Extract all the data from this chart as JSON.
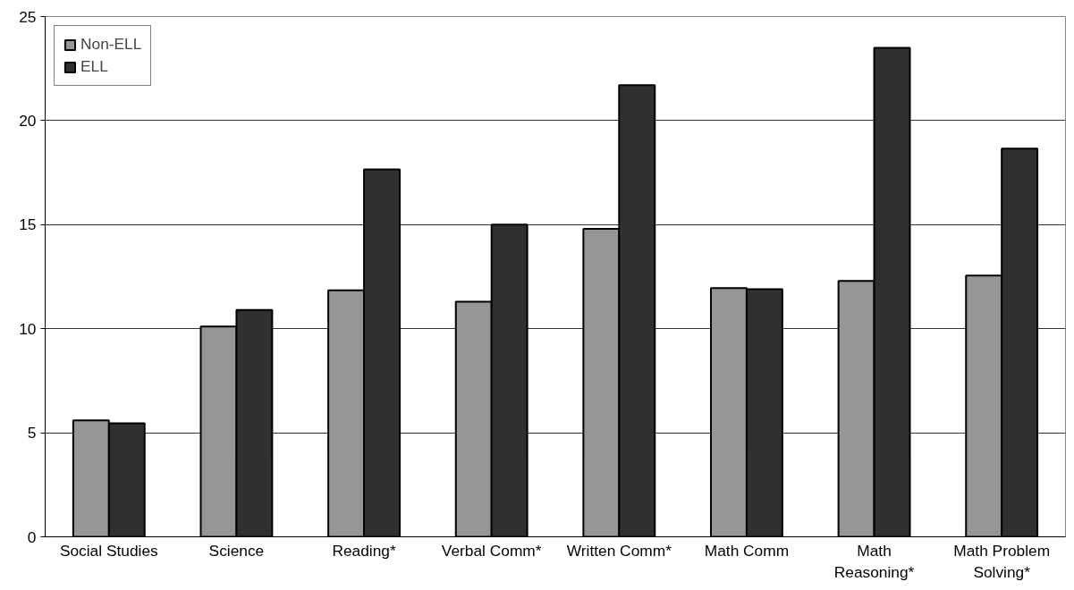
{
  "chart_data": {
    "type": "bar",
    "categories": [
      "Social Studies",
      "Science",
      "Reading*",
      "Verbal Comm*",
      "Written Comm*",
      "Math Comm",
      "Math Reasoning*",
      "Math Problem Solving*"
    ],
    "series": [
      {
        "name": "Non-ELL",
        "color": "#969696",
        "values": [
          5.6,
          10.1,
          11.85,
          11.3,
          14.8,
          11.95,
          12.3,
          12.55
        ]
      },
      {
        "name": "ELL",
        "color": "#303030",
        "values": [
          5.45,
          10.9,
          17.65,
          15.0,
          21.7,
          11.9,
          23.5,
          18.65
        ]
      }
    ],
    "ylim": [
      0,
      25
    ],
    "yticks": [
      0,
      5,
      10,
      15,
      20,
      25
    ],
    "grid": "y",
    "legend": "top left"
  }
}
